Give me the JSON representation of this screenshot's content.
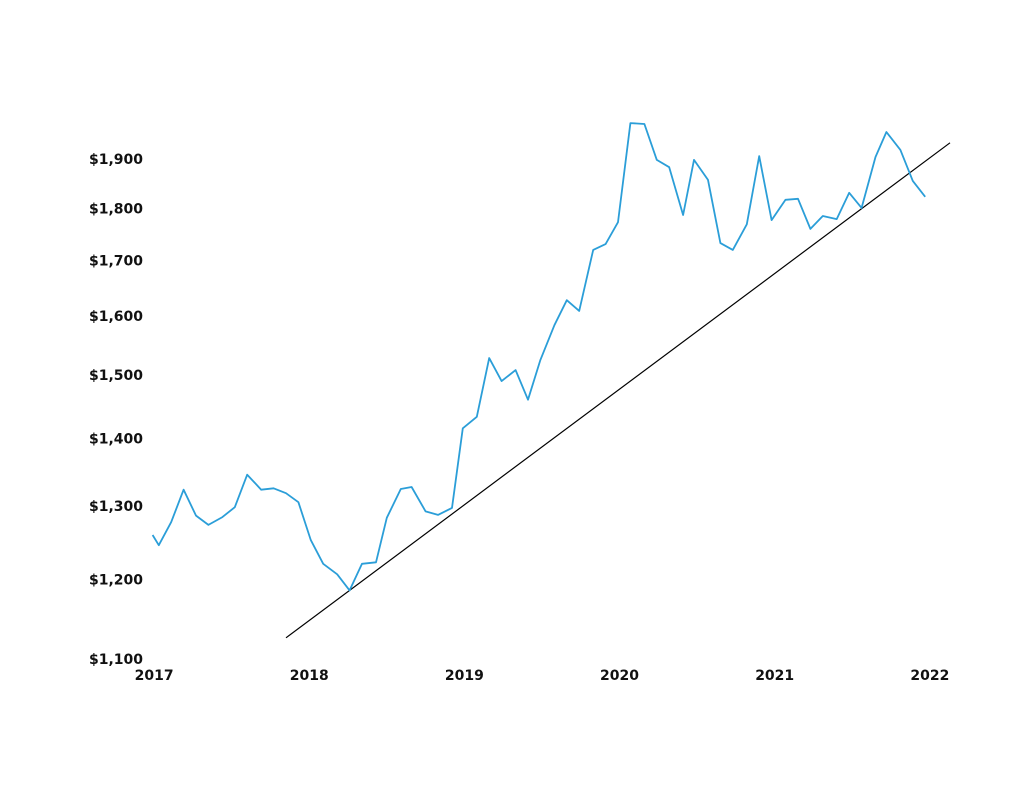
{
  "chart_data": {
    "type": "line",
    "log_scale": true,
    "grid": false,
    "color": "#2b9ed8",
    "x": [
      2016.99,
      2017.03,
      2017.11,
      2017.19,
      2017.27,
      2017.35,
      2017.44,
      2017.52,
      2017.6,
      2017.69,
      2017.77,
      2017.85,
      2017.93,
      2018.01,
      2018.09,
      2018.18,
      2018.26,
      2018.34,
      2018.43,
      2018.5,
      2018.59,
      2018.66,
      2018.75,
      2018.83,
      2018.92,
      2018.99,
      2019.08,
      2019.16,
      2019.24,
      2019.33,
      2019.41,
      2019.49,
      2019.58,
      2019.66,
      2019.74,
      2019.83,
      2019.91,
      2019.99,
      2020.07,
      2020.16,
      2020.24,
      2020.32,
      2020.41,
      2020.48,
      2020.57,
      2020.65,
      2020.73,
      2020.82,
      2020.9,
      2020.98,
      2021.07,
      2021.15,
      2021.23,
      2021.31,
      2021.4,
      2021.48,
      2021.56,
      2021.65,
      2021.72,
      2021.81,
      2021.89,
      2021.97
    ],
    "values": [
      1261,
      1247,
      1279,
      1325,
      1288,
      1275,
      1286,
      1300,
      1347,
      1325,
      1327,
      1320,
      1307,
      1254,
      1222,
      1208,
      1187,
      1222,
      1224,
      1285,
      1326,
      1329,
      1294,
      1289,
      1299,
      1417,
      1435,
      1530,
      1492,
      1510,
      1462,
      1527,
      1586,
      1630,
      1611,
      1722,
      1733,
      1775,
      1978,
      1976,
      1900,
      1885,
      1789,
      1900,
      1859,
      1735,
      1722,
      1771,
      1908,
      1779,
      1819,
      1821,
      1762,
      1787,
      1781,
      1833,
      1803,
      1906,
      1959,
      1921,
      1857,
      1825
    ],
    "trendline": {
      "color": "#000000",
      "x": [
        2017.85,
        2022.13
      ],
      "values": [
        1127,
        1936
      ]
    },
    "xlim": [
      2016.98,
      2022.13
    ],
    "xticks": [
      2017,
      2018,
      2019,
      2020,
      2021,
      2022
    ],
    "ylim": [
      1100,
      2000
    ],
    "yticks": [
      {
        "value": 1100,
        "label": "$1,100"
      },
      {
        "value": 1200,
        "label": "$1,200"
      },
      {
        "value": 1300,
        "label": "$1,300"
      },
      {
        "value": 1400,
        "label": "$1,400"
      },
      {
        "value": 1500,
        "label": "$1,500"
      },
      {
        "value": 1600,
        "label": "$1,600"
      },
      {
        "value": 1700,
        "label": "$1,700"
      },
      {
        "value": 1800,
        "label": "$1,800"
      },
      {
        "value": 1900,
        "label": "$1,900"
      }
    ]
  }
}
